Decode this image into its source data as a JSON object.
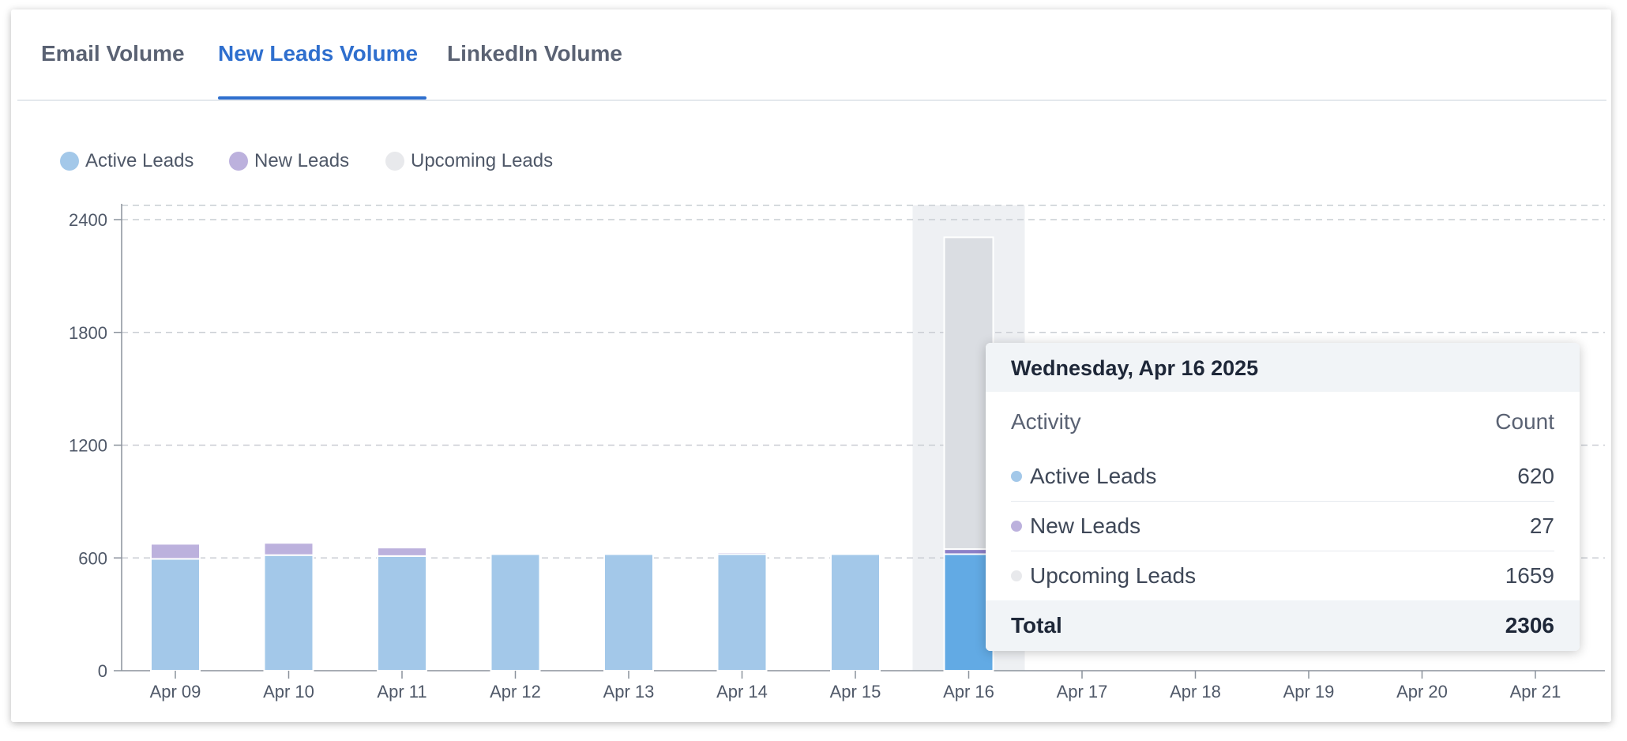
{
  "tabs": [
    {
      "label": "Email Volume",
      "active": false
    },
    {
      "label": "New Leads Volume",
      "active": true
    },
    {
      "label": "LinkedIn Volume",
      "active": false
    }
  ],
  "colors": {
    "active_leads": "#a3c8e9",
    "active_leads_highlight": "#62aae4",
    "new_leads": "#bcb1dd",
    "new_leads_highlight": "#8d80c7",
    "upcoming_leads": "#e8e9ec",
    "upcoming_leads_highlight": "#dadde2",
    "accent": "#2f6fce"
  },
  "chart_data": {
    "type": "bar",
    "stacked": true,
    "categories": [
      "Apr 09",
      "Apr 10",
      "Apr 11",
      "Apr 12",
      "Apr 13",
      "Apr 14",
      "Apr 15",
      "Apr 16",
      "Apr 17",
      "Apr 18",
      "Apr 19",
      "Apr 20",
      "Apr 21"
    ],
    "series": [
      {
        "name": "Active Leads",
        "values": [
          595,
          615,
          610,
          620,
          620,
          620,
          620,
          620,
          0,
          0,
          0,
          0,
          0
        ]
      },
      {
        "name": "New Leads",
        "values": [
          80,
          65,
          45,
          0,
          0,
          10,
          5,
          27,
          0,
          0,
          0,
          0,
          0
        ]
      },
      {
        "name": "Upcoming Leads",
        "values": [
          0,
          0,
          0,
          0,
          0,
          0,
          5,
          1659,
          0,
          0,
          0,
          0,
          0
        ]
      }
    ],
    "y_ticks": [
      0,
      600,
      1200,
      1800,
      2400
    ],
    "ylim": [
      0,
      2400
    ],
    "grid": true,
    "legend": "top-left",
    "highlighted_category": "Apr 16"
  },
  "tooltip": {
    "date": "Wednesday, Apr 16 2025",
    "col_activity": "Activity",
    "col_count": "Count",
    "rows": [
      {
        "name": "Active Leads",
        "count": "620"
      },
      {
        "name": "New Leads",
        "count": "27"
      },
      {
        "name": "Upcoming Leads",
        "count": "1659"
      }
    ],
    "total_label": "Total",
    "total_value": "2306"
  }
}
